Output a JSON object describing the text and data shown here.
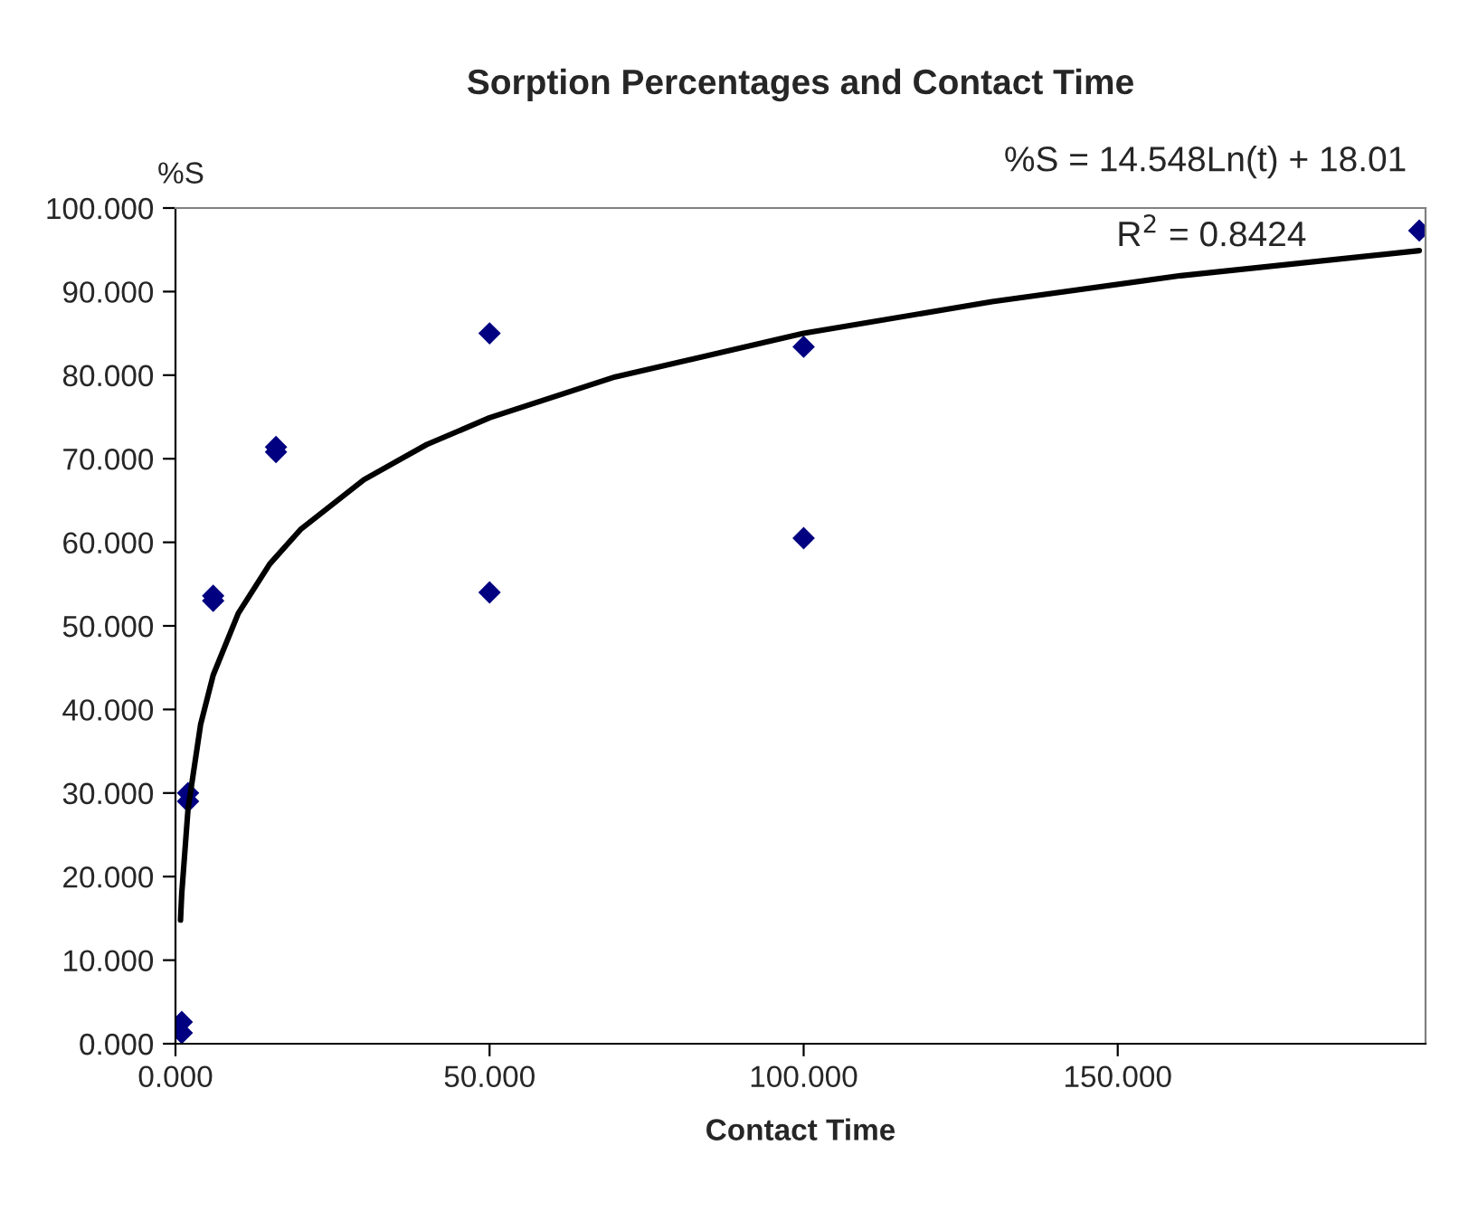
{
  "chart_data": {
    "type": "scatter",
    "title": "Sorption Percentages and Contact Time",
    "xlabel": "Contact Time",
    "ylabel": "%S",
    "xlim": [
      0,
      199
    ],
    "xticks": [
      {
        "value": 0,
        "label": "0.000"
      },
      {
        "value": 50,
        "label": "50.000"
      },
      {
        "value": 100,
        "label": "100.000"
      },
      {
        "value": 150,
        "label": "150.000"
      }
    ],
    "ylim": [
      0,
      100
    ],
    "yticks": [
      {
        "value": 0,
        "label": "0.000"
      },
      {
        "value": 10,
        "label": "10.000"
      },
      {
        "value": 20,
        "label": "20.000"
      },
      {
        "value": 30,
        "label": "30.000"
      },
      {
        "value": 40,
        "label": "40.000"
      },
      {
        "value": 50,
        "label": "50.000"
      },
      {
        "value": 60,
        "label": "60.000"
      },
      {
        "value": 70,
        "label": "70.000"
      },
      {
        "value": 80,
        "label": "80.000"
      },
      {
        "value": 90,
        "label": "90.000"
      },
      {
        "value": 100,
        "label": "100.000"
      }
    ],
    "marker": "diamond",
    "grid": false,
    "legend": false,
    "series": [
      {
        "color": "#000080",
        "x": [
          1,
          1,
          2,
          2,
          6,
          6,
          16,
          16,
          50,
          50,
          100,
          100,
          198
        ],
        "values": [
          1.3,
          2.6,
          29,
          30,
          53.0,
          53.6,
          70.8,
          71.4,
          85.0,
          54.0,
          83.4,
          60.5,
          97.3
        ]
      },
      {
        "type": "line",
        "color": "#000000",
        "marker": "none",
        "x": [
          0.8,
          1,
          2,
          4,
          6,
          10,
          15,
          20,
          30,
          40,
          50,
          70,
          100,
          130,
          160,
          198
        ],
        "values": [
          14.8,
          18.0,
          28.1,
          38.2,
          44.1,
          51.5,
          57.4,
          61.6,
          67.5,
          71.7,
          74.9,
          79.8,
          85.0,
          88.8,
          91.9,
          94.9
        ]
      }
    ],
    "annotations": [
      "%S = 14.548Ln(t) + 18.01",
      "R$^{2}$ = 0.8424"
    ]
  }
}
